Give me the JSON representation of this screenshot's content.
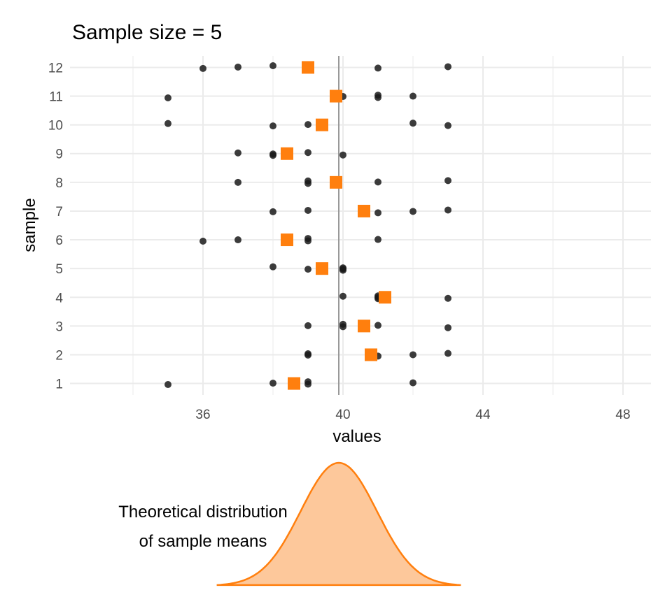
{
  "chart_data": {
    "type": "scatter",
    "title": "Sample size = 5",
    "xlabel": "values",
    "ylabel": "sample",
    "xlim": [
      32.2,
      48.8
    ],
    "ylim": [
      0.6,
      12.4
    ],
    "x_ticks": [
      36,
      40,
      44,
      48
    ],
    "x_minor_ticks": [
      34,
      38,
      42,
      46
    ],
    "y_ticks": [
      1,
      2,
      3,
      4,
      5,
      6,
      7,
      8,
      9,
      10,
      11,
      12
    ],
    "grid": true,
    "population_mean": 39.88,
    "samples": [
      {
        "sample": 1,
        "values": [
          35,
          38,
          39,
          39,
          42
        ],
        "mean": 38.6
      },
      {
        "sample": 2,
        "values": [
          39,
          39,
          41,
          42,
          43
        ],
        "mean": 40.8
      },
      {
        "sample": 3,
        "values": [
          39,
          40,
          40,
          41,
          43
        ],
        "mean": 40.6
      },
      {
        "sample": 4,
        "values": [
          40,
          41,
          41,
          41,
          43
        ],
        "mean": 41.2
      },
      {
        "sample": 5,
        "values": [
          38,
          39,
          40,
          40,
          40
        ],
        "mean": 39.4
      },
      {
        "sample": 6,
        "values": [
          36,
          37,
          39,
          39,
          41
        ],
        "mean": 38.4
      },
      {
        "sample": 7,
        "values": [
          38,
          39,
          41,
          42,
          43
        ],
        "mean": 40.6
      },
      {
        "sample": 8,
        "values": [
          37,
          39,
          39,
          41,
          43
        ],
        "mean": 39.8
      },
      {
        "sample": 9,
        "values": [
          37,
          38,
          38,
          39,
          40
        ],
        "mean": 38.4
      },
      {
        "sample": 10,
        "values": [
          35,
          38,
          39,
          42,
          43
        ],
        "mean": 39.4
      },
      {
        "sample": 11,
        "values": [
          35,
          40,
          41,
          41,
          42
        ],
        "mean": 39.8
      },
      {
        "sample": 12,
        "values": [
          36,
          37,
          38,
          41,
          43
        ],
        "mean": 39.0
      }
    ],
    "distribution": {
      "label_line1": "Theoretical distribution",
      "label_line2": "of sample means",
      "mean": 39.88,
      "sd": 1.09
    },
    "colors": {
      "point": "#1a1a1a",
      "mean": "#ff7f0e",
      "fill": "#fdc89b",
      "vline": "#999999",
      "grid": "#ebebeb"
    }
  }
}
